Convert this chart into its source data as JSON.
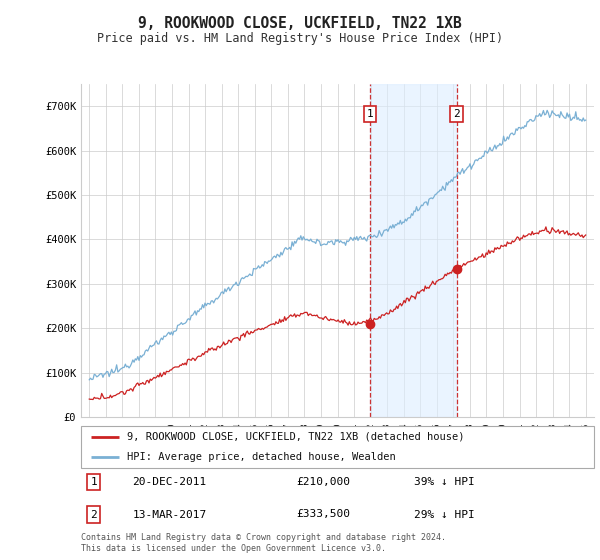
{
  "title": "9, ROOKWOOD CLOSE, UCKFIELD, TN22 1XB",
  "subtitle": "Price paid vs. HM Land Registry's House Price Index (HPI)",
  "legend_line1": "9, ROOKWOOD CLOSE, UCKFIELD, TN22 1XB (detached house)",
  "legend_line2": "HPI: Average price, detached house, Wealden",
  "transaction1_date": "20-DEC-2011",
  "transaction1_price": "£210,000",
  "transaction1_hpi": "39% ↓ HPI",
  "transaction2_date": "13-MAR-2017",
  "transaction2_price": "£333,500",
  "transaction2_hpi": "29% ↓ HPI",
  "footnote": "Contains HM Land Registry data © Crown copyright and database right 2024.\nThis data is licensed under the Open Government Licence v3.0.",
  "ylim": [
    0,
    750000
  ],
  "yticks": [
    0,
    100000,
    200000,
    300000,
    400000,
    500000,
    600000,
    700000
  ],
  "ytick_labels": [
    "£0",
    "£100K",
    "£200K",
    "£300K",
    "£400K",
    "£500K",
    "£600K",
    "£700K"
  ],
  "hpi_color": "#7ab0d4",
  "price_color": "#cc2222",
  "transaction1_x": 2011.96,
  "transaction1_y": 210000,
  "transaction2_x": 2017.2,
  "transaction2_y": 333500,
  "shade_color": "#ddeeff",
  "vline_color": "#cc3333",
  "grid_color": "#cccccc",
  "background_color": "#ffffff",
  "box_edgecolor": "#cc2222",
  "xlim_left": 1994.5,
  "xlim_right": 2025.5
}
